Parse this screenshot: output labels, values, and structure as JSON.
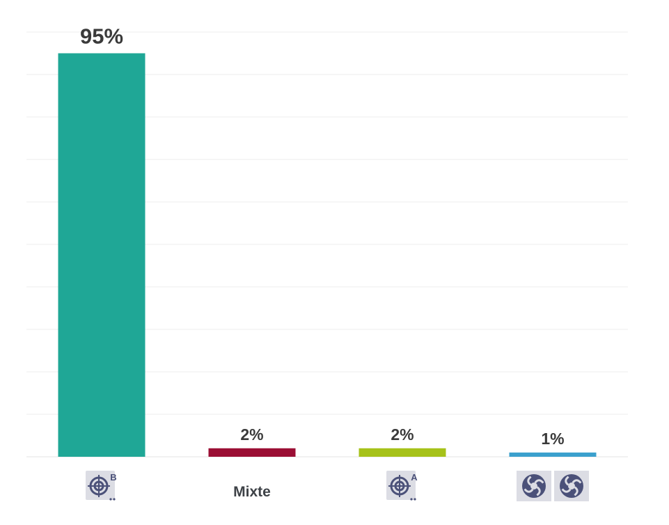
{
  "chart_data": {
    "type": "bar",
    "categories": [
      "B",
      "Mixte",
      "A",
      ""
    ],
    "category_icons": [
      "target-icon",
      null,
      "target-icon",
      "fan-icon"
    ],
    "values": [
      95,
      2,
      2,
      1
    ],
    "value_labels": [
      "95%",
      "2%",
      "2%",
      "1%"
    ],
    "bar_colors": [
      "#1fa796",
      "#9b0f35",
      "#a6c21a",
      "#3ba0cd"
    ],
    "ylim": [
      0,
      100
    ],
    "grid": true,
    "legend": "none"
  }
}
